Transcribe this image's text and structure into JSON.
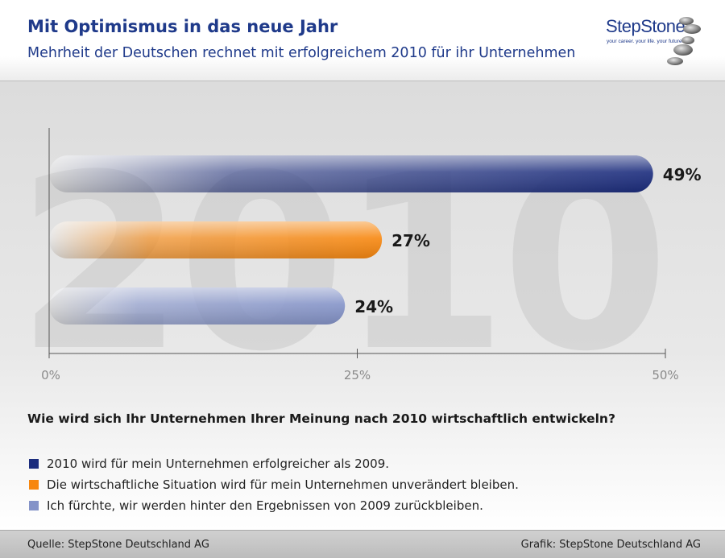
{
  "header": {
    "title": "Mit Optimismus in das neue Jahr",
    "subtitle": "Mehrheit der Deutschen rechnet mit erfolgreichem 2010 für ihr Unternehmen"
  },
  "logo": {
    "brand": "StepStone",
    "tagline": "your career. your life. your future."
  },
  "watermark": "2010",
  "colors": {
    "title": "#1f3a8a",
    "bar_dark_blue": "#1b2c7d",
    "bar_orange": "#f7870f",
    "bar_light_blue": "#8493c8"
  },
  "chart_data": {
    "type": "bar",
    "orientation": "horizontal",
    "categories": [
      "2010 wird für mein Unternehmen erfolgreicher als 2009.",
      "Die wirtschaftliche Situation wird für mein Unternehmen unverändert bleiben.",
      "Ich fürchte, wir werden hinter den Ergebnissen von 2009 zurückbleiben."
    ],
    "values": [
      49,
      27,
      24
    ],
    "value_labels": [
      "49%",
      "27%",
      "24%"
    ],
    "bar_colors": [
      "#1b2c7d",
      "#f7870f",
      "#8493c8"
    ],
    "xlim": [
      0,
      50
    ],
    "xticks": [
      0,
      25,
      50
    ],
    "xtick_labels": [
      "0%",
      "25%",
      "50%"
    ],
    "grid": false,
    "legend_placement": "bottom"
  },
  "question": "Wie wird sich Ihr Unternehmen Ihrer Meinung nach 2010 wirtschaftlich entwickeln?",
  "footer": {
    "source": "Quelle: StepStone Deutschland AG",
    "credit": "Grafik: StepStone Deutschland AG"
  }
}
